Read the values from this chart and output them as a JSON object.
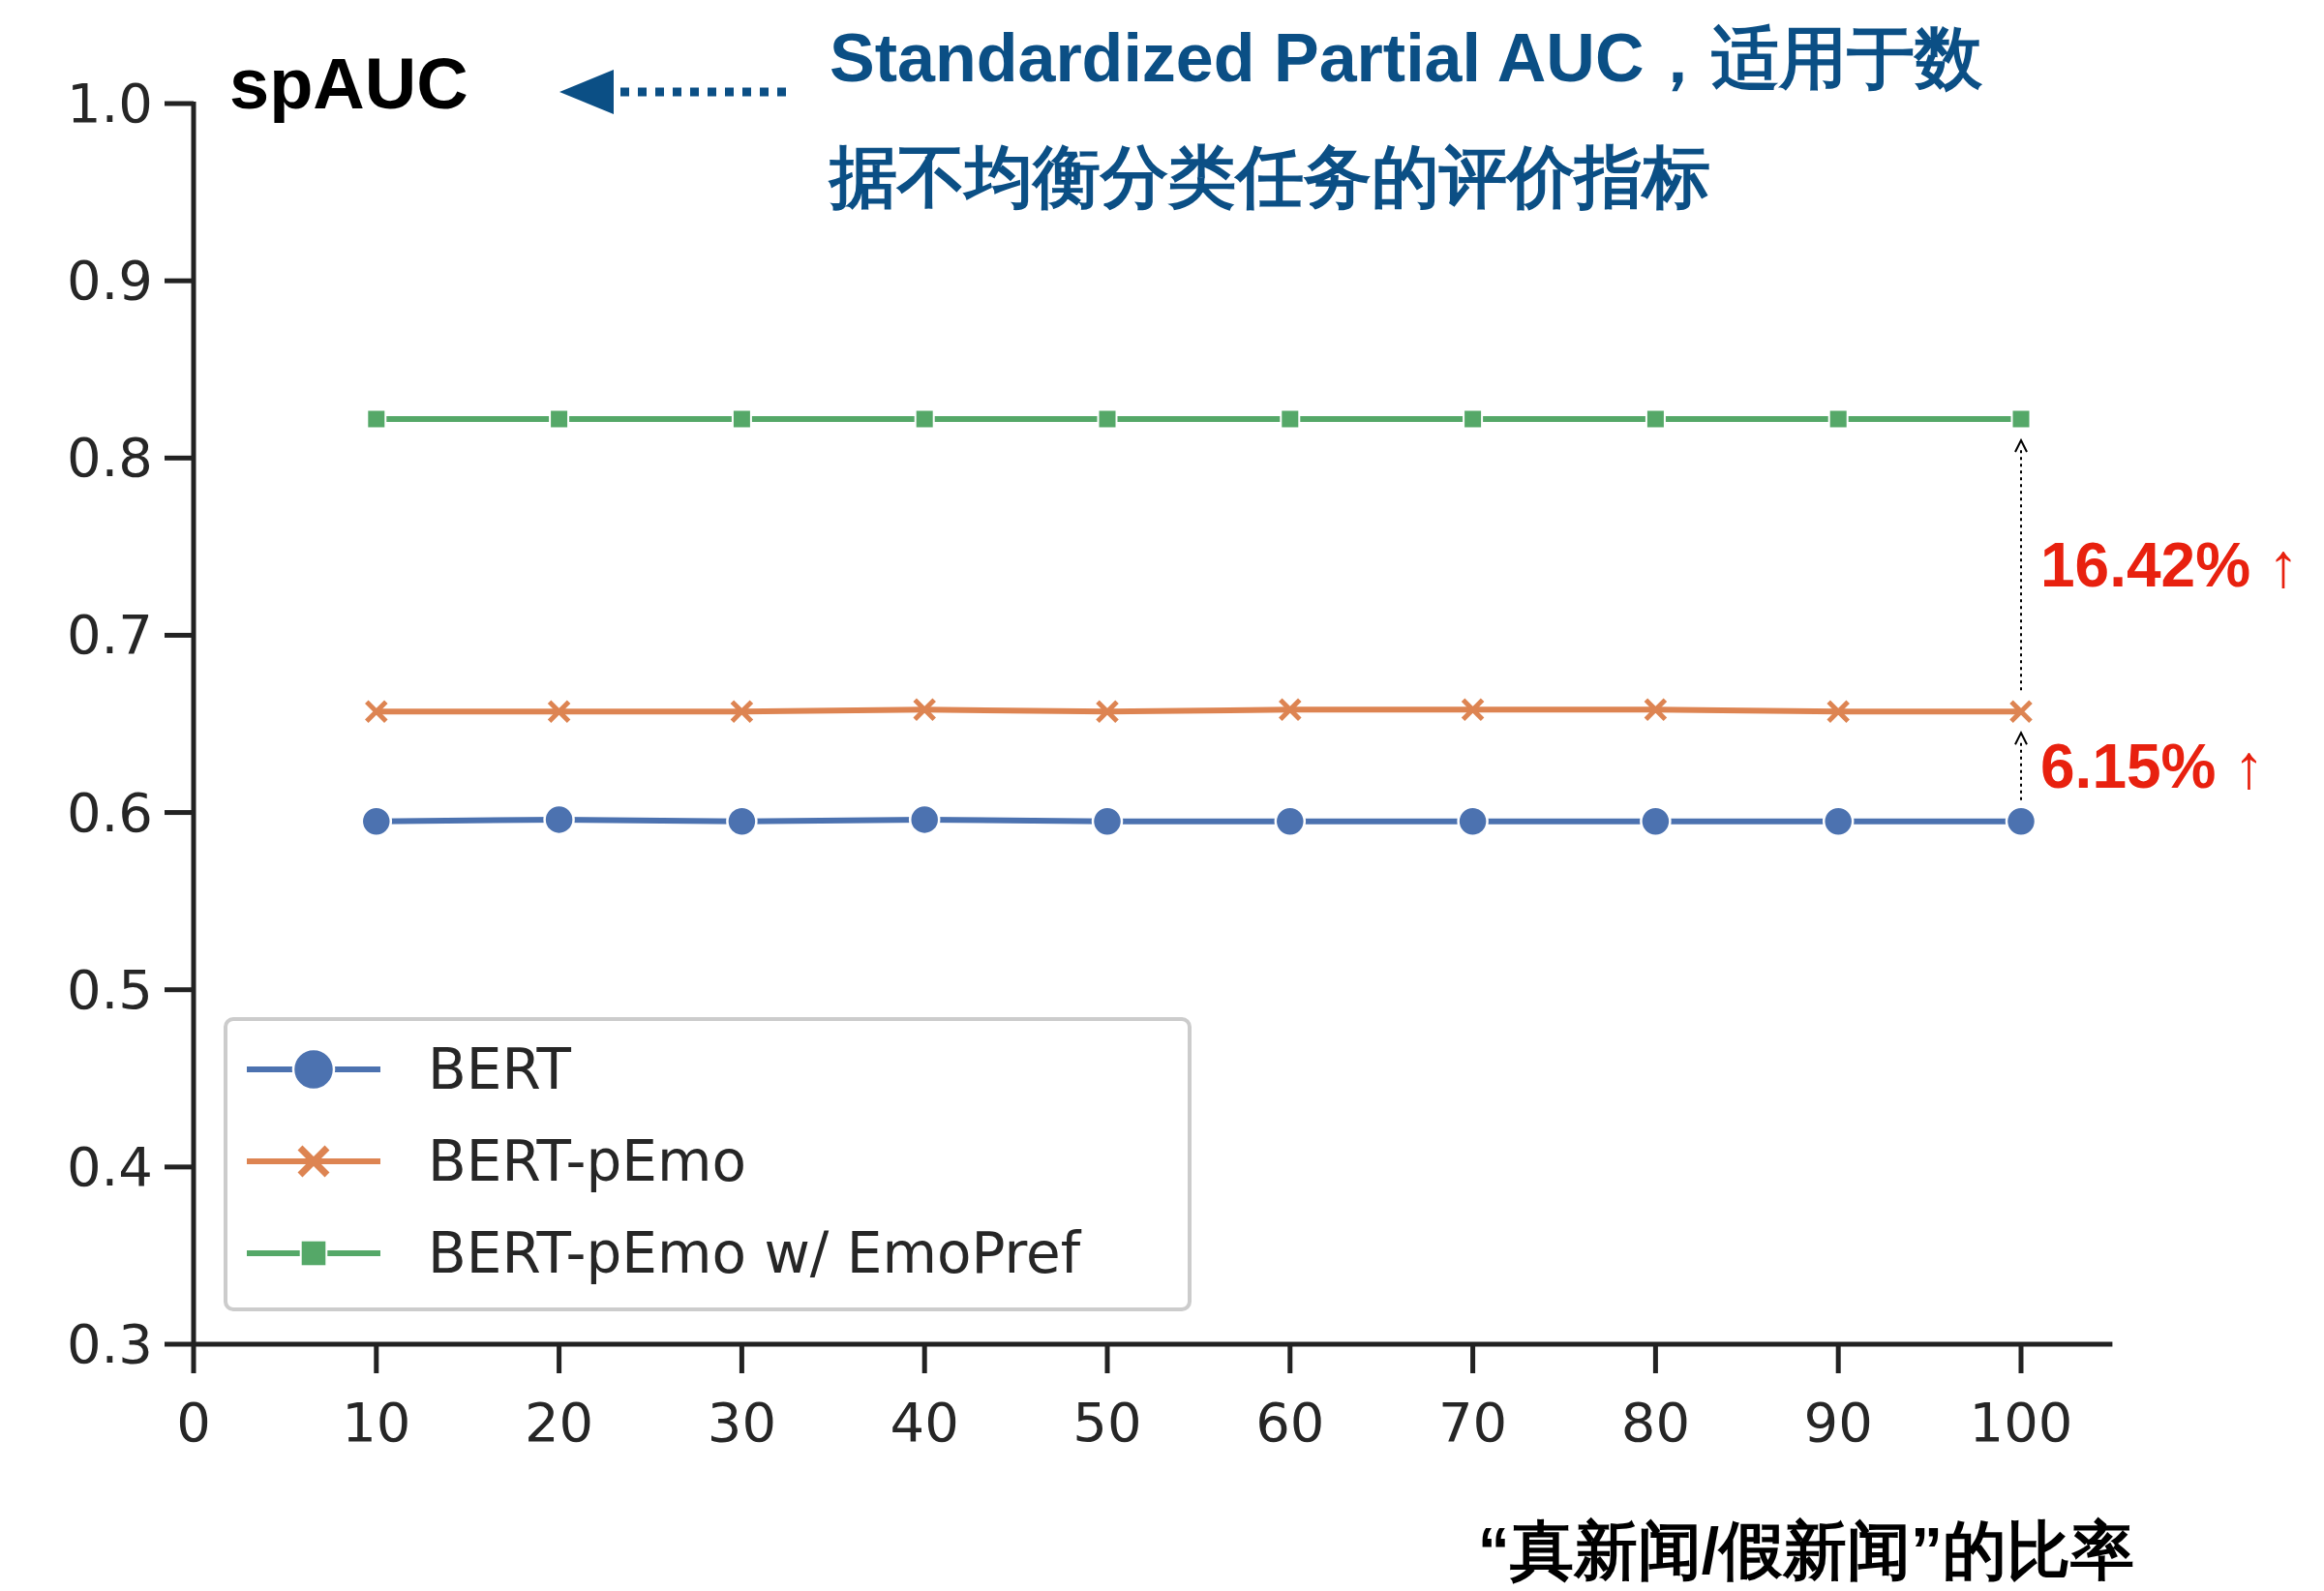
{
  "chart_data": {
    "type": "line",
    "xlabel": "“真新闻/假新闻”的比率",
    "ylabel": "spAUC",
    "x": [
      10,
      20,
      30,
      40,
      50,
      60,
      70,
      80,
      90,
      100
    ],
    "series": [
      {
        "name": "BERT",
        "color": "#4c72b0",
        "marker": "circle",
        "values": [
          0.595,
          0.596,
          0.595,
          0.596,
          0.595,
          0.595,
          0.595,
          0.595,
          0.595,
          0.595
        ]
      },
      {
        "name": "BERT-pEmo",
        "color": "#dd8452",
        "marker": "cross",
        "values": [
          0.657,
          0.657,
          0.657,
          0.658,
          0.657,
          0.658,
          0.658,
          0.658,
          0.657,
          0.657
        ]
      },
      {
        "name": "BERT-pEmo w/ EmoPref",
        "color": "#55a868",
        "marker": "square",
        "values": [
          0.822,
          0.822,
          0.822,
          0.822,
          0.822,
          0.822,
          0.822,
          0.822,
          0.822,
          0.822
        ]
      }
    ],
    "xlim": [
      0,
      105
    ],
    "xticks": [
      0,
      10,
      20,
      30,
      40,
      50,
      60,
      70,
      80,
      90,
      100
    ],
    "ylim": [
      0.3,
      1.0
    ],
    "yticks": [
      0.3,
      0.4,
      0.5,
      0.6,
      0.7,
      0.8,
      0.9,
      {
        "value": 1.0,
        "label": "1.0"
      }
    ],
    "legend": "bottom left",
    "grid": false,
    "line_style": "solid",
    "annotations": [
      "Standardized Partial AUC，适用于数据不均衡分类任务的评价指标",
      "16.42% ↑",
      "6.15% ↑"
    ]
  }
}
